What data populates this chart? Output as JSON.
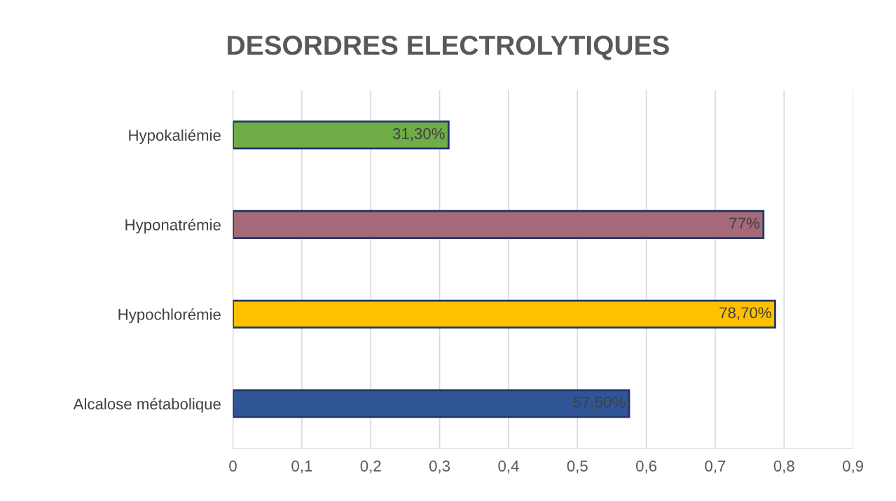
{
  "chart_data": {
    "type": "bar",
    "orientation": "horizontal",
    "title": "DESORDRES ELECTROLYTIQUES",
    "categories": [
      "Hypokaliémie",
      "Hyponatrémie",
      "Hypochlorémie",
      "Alcalose métabolique"
    ],
    "values": [
      0.313,
      0.77,
      0.787,
      0.575
    ],
    "colors": [
      "#70ad47",
      "#a5697a",
      "#ffc000",
      "#2f5597"
    ],
    "value_labels": [
      "31,30%",
      "77%",
      "78,70%",
      "57,50%"
    ],
    "xlim": [
      0,
      0.9
    ],
    "xticks": [
      0,
      {
        "value": 0.1,
        "label": "0,1"
      },
      {
        "value": 0.2,
        "label": "0,2"
      },
      {
        "value": 0.3,
        "label": "0,3"
      },
      {
        "value": 0.4,
        "label": "0,4"
      },
      {
        "value": 0.5,
        "label": "0,5"
      },
      {
        "value": 0.6,
        "label": "0,6"
      },
      {
        "value": 0.7,
        "label": "0,7"
      },
      {
        "value": 0.8,
        "label": "0,8"
      },
      {
        "value": 0.9,
        "label": "0,9"
      }
    ],
    "grid": "x",
    "legend": false
  }
}
